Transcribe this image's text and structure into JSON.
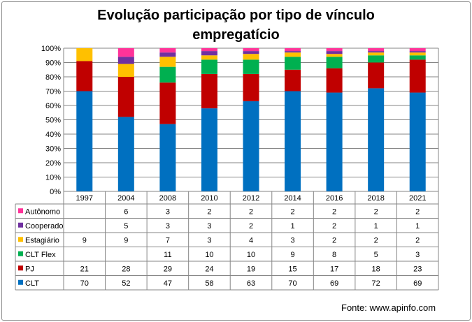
{
  "page": {
    "title_line1": "Evolução participação por tipo de vínculo",
    "title_line2": "empregatício",
    "source": "Fonte: www.apinfo.com"
  },
  "chart_data": {
    "type": "bar",
    "stacked": true,
    "percent_stacked": true,
    "title": "Evolução participação por tipo de vínculo empregatício",
    "categories": [
      "1997",
      "2004",
      "2008",
      "2010",
      "2012",
      "2014",
      "2016",
      "2018",
      "2021"
    ],
    "y_ticks": [
      "0%",
      "10%",
      "20%",
      "30%",
      "40%",
      "50%",
      "60%",
      "70%",
      "80%",
      "90%",
      "100%"
    ],
    "ylim": [
      0,
      100
    ],
    "grid": true,
    "legend": "data-table",
    "series": [
      {
        "name": "CLT",
        "color": "#0070c0",
        "values": [
          70,
          52,
          47,
          58,
          63,
          70,
          69,
          72,
          69
        ]
      },
      {
        "name": "PJ",
        "color": "#c00000",
        "values": [
          21,
          28,
          29,
          24,
          19,
          15,
          17,
          18,
          23
        ]
      },
      {
        "name": "CLT Flex",
        "color": "#00b050",
        "values": [
          null,
          null,
          11,
          10,
          10,
          9,
          8,
          5,
          3
        ]
      },
      {
        "name": "Estagiário",
        "color": "#ffc000",
        "values": [
          9,
          9,
          7,
          3,
          4,
          3,
          2,
          2,
          2
        ]
      },
      {
        "name": "Cooperado",
        "color": "#7030a0",
        "values": [
          null,
          5,
          3,
          3,
          2,
          1,
          2,
          1,
          1
        ]
      },
      {
        "name": "Autônomo",
        "color": "#ff3399",
        "values": [
          null,
          6,
          3,
          2,
          2,
          2,
          2,
          2,
          2
        ]
      }
    ]
  }
}
